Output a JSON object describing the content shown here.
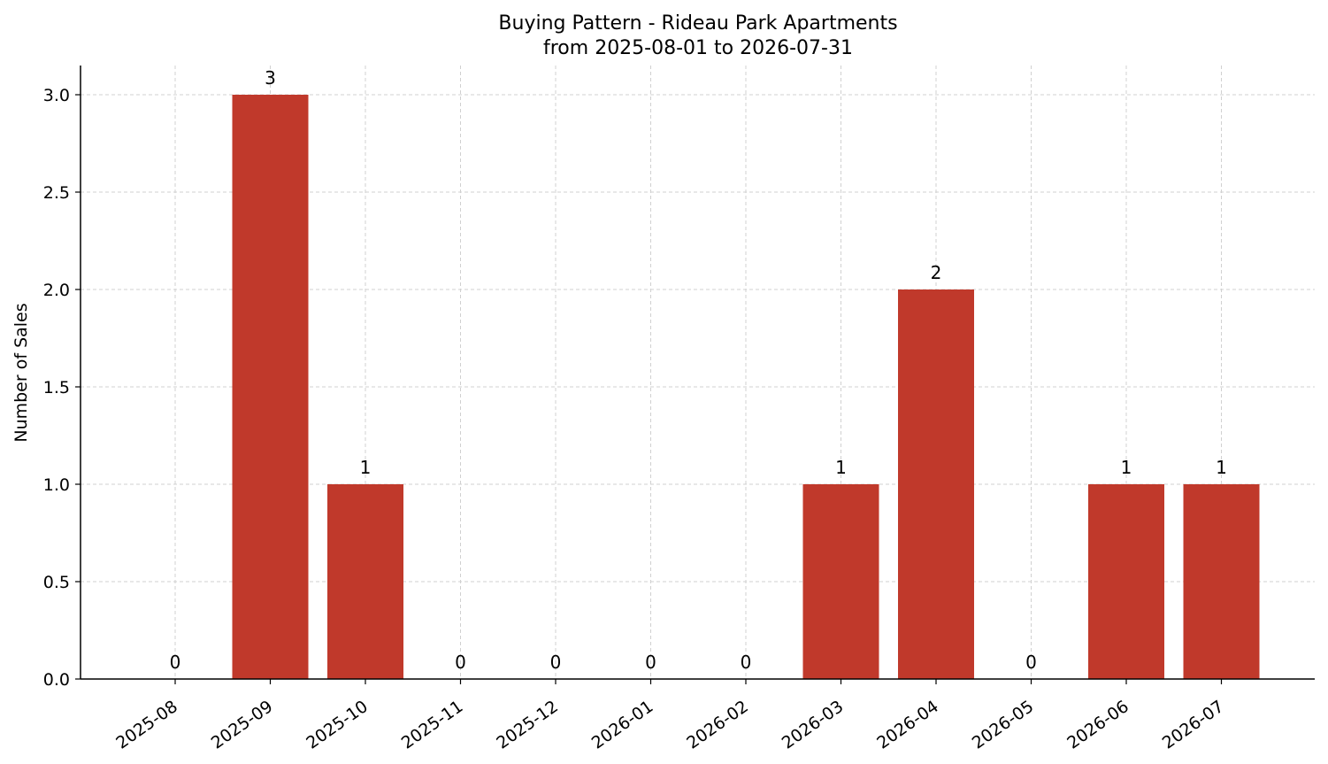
{
  "chart_data": {
    "type": "bar",
    "title": "Buying Pattern - Rideau Park Apartments",
    "subtitle": "from 2025-08-01 to 2026-07-31",
    "xlabel": "",
    "ylabel": "Number of Sales",
    "categories": [
      "2025-08",
      "2025-09",
      "2025-10",
      "2025-11",
      "2025-12",
      "2026-01",
      "2026-02",
      "2026-03",
      "2026-04",
      "2026-05",
      "2026-06",
      "2026-07"
    ],
    "values": [
      0,
      3,
      1,
      0,
      0,
      0,
      0,
      1,
      2,
      0,
      1,
      1
    ],
    "ylim": [
      0,
      3.15
    ],
    "yticks": [
      "0.0",
      "0.5",
      "1.0",
      "1.5",
      "2.0",
      "2.5",
      "3.0"
    ],
    "grid": true,
    "bar_color": "#c0392b"
  }
}
